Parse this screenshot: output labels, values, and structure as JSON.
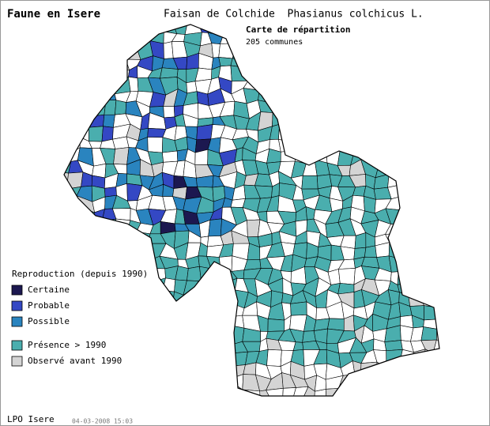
{
  "header": {
    "site": "Faune en Isere",
    "species": "Faisan de Colchide  Phasianus colchicus L.",
    "subtitle": "Carte de répartition",
    "count": "205 communes"
  },
  "legend": {
    "title": "Reproduction (depuis 1990)",
    "items": [
      {
        "label": "Certaine",
        "color": "#1c1850"
      },
      {
        "label": "Probable",
        "color": "#3448c4"
      },
      {
        "label": "Possible",
        "color": "#2a84bf"
      },
      {
        "label": "Présence > 1990",
        "color": "#4aaeae"
      },
      {
        "label": "Observé avant 1990",
        "color": "#d4d4d4"
      }
    ]
  },
  "footer": {
    "org": "LPO Isere",
    "date": "04-03-2008 15:03"
  }
}
